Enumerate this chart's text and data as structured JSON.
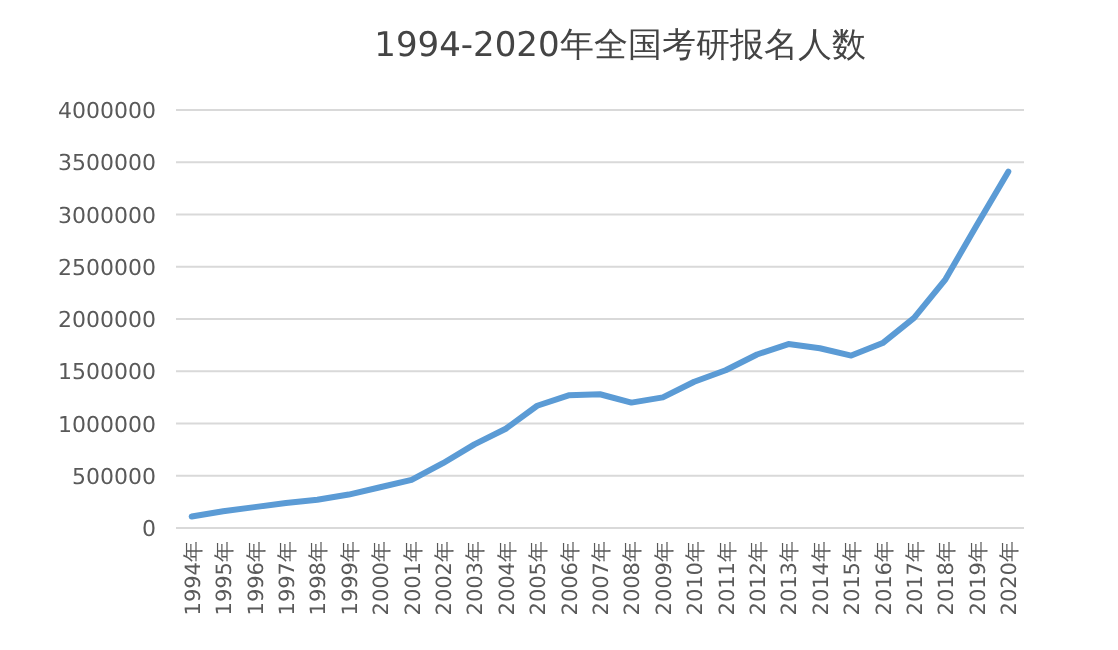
{
  "chart_data": {
    "type": "line",
    "title": "1994-2020年全国考研报名人数",
    "categories": [
      "1994年",
      "1995年",
      "1996年",
      "1997年",
      "1998年",
      "1999年",
      "2000年",
      "2001年",
      "2002年",
      "2003年",
      "2004年",
      "2005年",
      "2006年",
      "2007年",
      "2008年",
      "2009年",
      "2010年",
      "2011年",
      "2012年",
      "2013年",
      "2014年",
      "2015年",
      "2016年",
      "2017年",
      "2018年",
      "2019年",
      "2020年"
    ],
    "series": [
      {
        "color": "#5b9bd5",
        "values": [
          110000,
          160000,
          200000,
          240000,
          270000,
          320000,
          390000,
          460000,
          620000,
          800000,
          950000,
          1170000,
          1270000,
          1280000,
          1200000,
          1250000,
          1400000,
          1510000,
          1660000,
          1760000,
          1720000,
          1650000,
          1770000,
          2010000,
          2380000,
          2900000,
          3410000
        ]
      }
    ],
    "ylim": [
      0,
      4000000
    ],
    "yticks": [
      0,
      500000,
      1000000,
      1500000,
      2000000,
      2500000,
      3000000,
      3500000,
      4000000
    ],
    "grid": "y",
    "marker": "none",
    "line_style": "solid"
  }
}
